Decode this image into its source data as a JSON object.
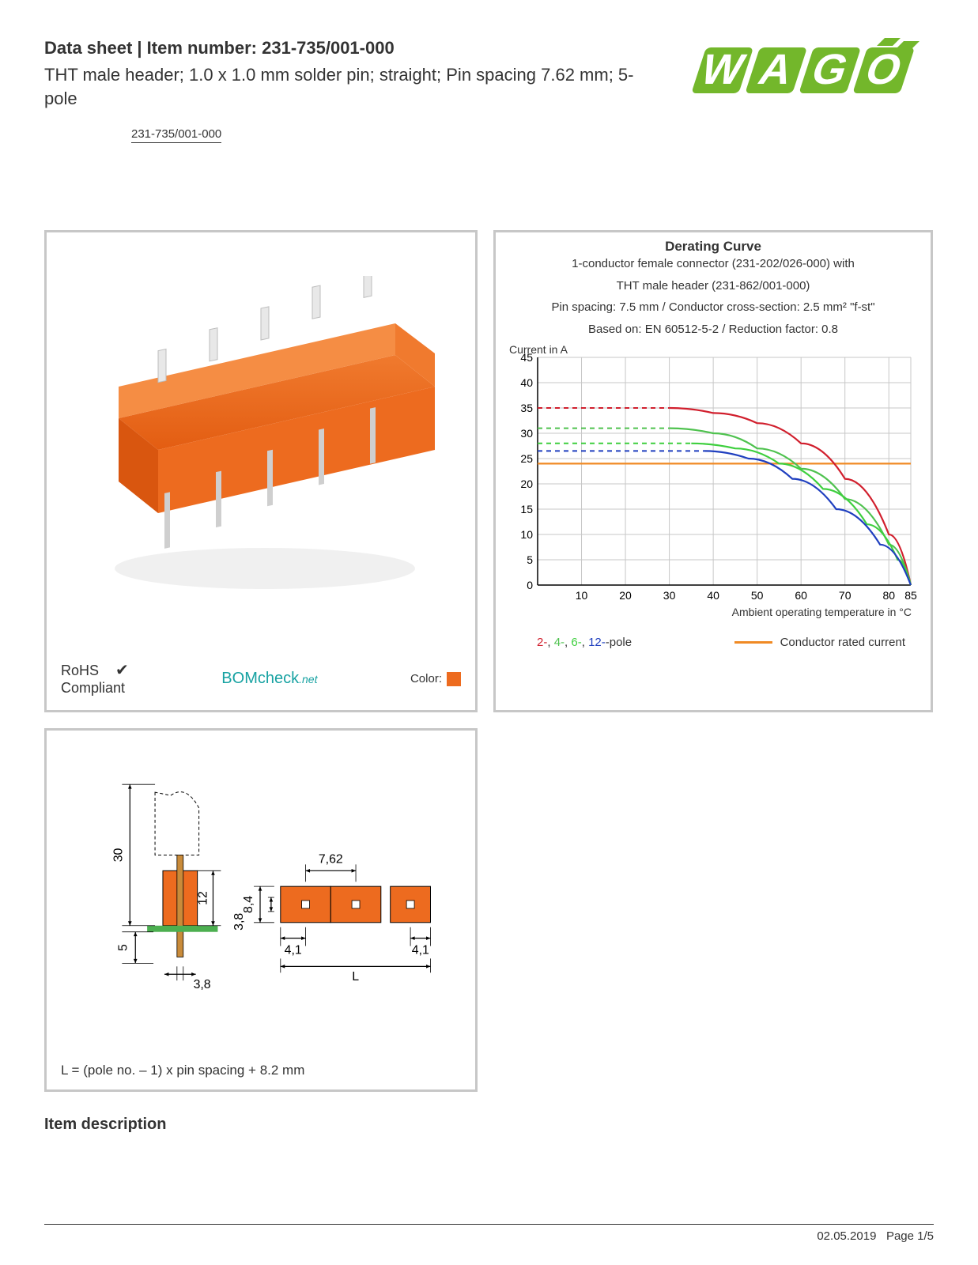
{
  "header": {
    "title": "Data sheet  |  Item number: 231-735/001-000",
    "description": "THT male header; 1.0 x 1.0 mm solder pin; straight; Pin spacing 7.62 mm; 5-pole",
    "item_link": "231-735/001-000"
  },
  "logo": {
    "brand": "WAGO",
    "color": "#73b72b"
  },
  "product_image": {
    "body_color": "#ed6b1f",
    "pin_color": "#d9d9d9",
    "solder_color": "#c0c0c0"
  },
  "compliance": {
    "rohs_line1": "RoHS",
    "rohs_line2": "Compliant",
    "bom_label": "BOMcheck",
    "bom_suffix": ".net",
    "color_label": "Color:",
    "swatch_color": "#ed6b1f"
  },
  "chart": {
    "title": "Derating Curve",
    "sub1": "1-conductor female connector (231-202/026-000) with",
    "sub2": "THT male header (231-862/001-000)",
    "sub3": "Pin spacing: 7.5 mm / Conductor cross-section: 2.5 mm² \"f-st\"",
    "sub4": "Based on: EN 60512-5-2 / Reduction factor: 0.8",
    "y_title": "Current in A",
    "x_title": "Ambient operating temperature in °C",
    "ymax": 45,
    "ytick_step": 5,
    "yticks": [
      0,
      5,
      10,
      15,
      20,
      25,
      30,
      35,
      40,
      45
    ],
    "xmin": 0,
    "xmax": 85,
    "xticks": [
      10,
      20,
      30,
      40,
      50,
      60,
      70,
      80,
      85
    ],
    "grid_color": "#c7c7c7",
    "axis_color": "#000000",
    "conductor_rated": {
      "y": 24,
      "color": "#f08a24"
    },
    "series": [
      {
        "label": "2",
        "color": "#d11f2d",
        "solid": [
          [
            0,
            0
          ],
          [
            30,
            35
          ],
          [
            40,
            34
          ],
          [
            50,
            32
          ],
          [
            60,
            28
          ],
          [
            70,
            21
          ],
          [
            80,
            10
          ],
          [
            85,
            0
          ]
        ],
        "dashed": [
          [
            0,
            35
          ],
          [
            30,
            35
          ]
        ]
      },
      {
        "label": "4",
        "color": "#4fc24f",
        "solid": [
          [
            0,
            0
          ],
          [
            30,
            31
          ],
          [
            40,
            30
          ],
          [
            50,
            27
          ],
          [
            60,
            23
          ],
          [
            70,
            17
          ],
          [
            80,
            8
          ],
          [
            85,
            0
          ]
        ],
        "dashed": [
          [
            0,
            31
          ],
          [
            30,
            31
          ]
        ]
      },
      {
        "label": "6",
        "color": "#3ecf3e",
        "solid": [
          [
            0,
            0
          ],
          [
            35,
            28
          ],
          [
            45,
            27
          ],
          [
            55,
            24
          ],
          [
            65,
            19
          ],
          [
            75,
            12
          ],
          [
            82,
            5
          ],
          [
            85,
            0
          ]
        ],
        "dashed": [
          [
            0,
            28
          ],
          [
            35,
            28
          ]
        ]
      },
      {
        "label": "12",
        "color": "#1f3fbf",
        "solid": [
          [
            0,
            0
          ],
          [
            38,
            26.5
          ],
          [
            48,
            25
          ],
          [
            58,
            21
          ],
          [
            68,
            15
          ],
          [
            78,
            8
          ],
          [
            85,
            0
          ]
        ],
        "dashed": [
          [
            0,
            26.5
          ],
          [
            38,
            26.5
          ]
        ]
      }
    ],
    "legend_suffix": "-pole",
    "legend_cond": "Conductor rated current"
  },
  "dimensions": {
    "values": {
      "height_total": "30",
      "body_h": "12",
      "pin_below": "5",
      "pin_width": "3,8",
      "pitch": "7,62",
      "side_h": "8,4",
      "side_inner": "3,8",
      "edge1": "4,1",
      "edge2": "4,1",
      "length": "L"
    },
    "orange": "#ed6b1f",
    "green": "#4caf50",
    "formula": "L = (pole no. – 1) x pin spacing + 8.2 mm"
  },
  "sections": {
    "item_description": "Item description"
  },
  "footer": {
    "date": "02.05.2019",
    "page": "Page 1/5"
  }
}
